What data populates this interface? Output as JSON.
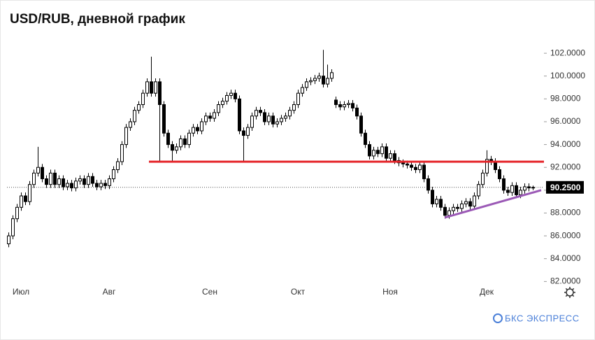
{
  "chart_data": {
    "type": "candlestick",
    "title": "USD/RUB, дневной график",
    "categories": [
      null,
      null,
      null,
      "Июл",
      null,
      null,
      null,
      null,
      null,
      null,
      null,
      null,
      null,
      null,
      null,
      null,
      null,
      null,
      null,
      null,
      null,
      null,
      null,
      null,
      "Авг",
      null,
      null,
      null,
      null,
      null,
      null,
      null,
      null,
      null,
      null,
      null,
      null,
      null,
      null,
      null,
      null,
      null,
      null,
      null,
      null,
      null,
      null,
      null,
      "Сен",
      null,
      null,
      null,
      null,
      null,
      null,
      null,
      null,
      null,
      null,
      null,
      null,
      null,
      null,
      null,
      null,
      null,
      null,
      null,
      null,
      "Окт",
      null,
      null,
      null,
      null,
      null,
      null,
      null,
      null,
      null,
      null,
      null,
      null,
      null,
      null,
      null,
      null,
      null,
      null,
      null,
      null,
      null,
      "Ноя",
      null,
      null,
      null,
      null,
      null,
      null,
      null,
      null,
      null,
      null,
      null,
      null,
      null,
      null,
      null,
      null,
      null,
      null,
      null,
      null,
      null,
      null,
      "Дек",
      null,
      null,
      null,
      null,
      null,
      null,
      null,
      null,
      null,
      null,
      null
    ],
    "series": [
      {
        "color": "#000000",
        "up_color": "#ffffff",
        "down_color": "#000000",
        "open": [
          85.3,
          86.0,
          87.5,
          88.5,
          89.5,
          89.0,
          90.5,
          91.5,
          92.0,
          91.0,
          90.5,
          91.5,
          90.5,
          91.0,
          90.3,
          90.6,
          90.2,
          90.8,
          91.0,
          90.5,
          91.2,
          90.6,
          90.3,
          90.6,
          90.4,
          91.0,
          91.8,
          92.5,
          94.0,
          95.5,
          96.0,
          97.0,
          97.5,
          98.5,
          99.5,
          98.5,
          99.5,
          97.5,
          95.0,
          94.0,
          93.5,
          93.8,
          94.5,
          94.0,
          95.0,
          95.5,
          95.2,
          96.0,
          96.5,
          96.3,
          96.8,
          97.5,
          97.8,
          98.3,
          98.5,
          98.0,
          95.2,
          94.8,
          95.5,
          96.5,
          97.0,
          96.8,
          96.0,
          96.5,
          95.8,
          96.0,
          96.3,
          96.5,
          97.0,
          97.5,
          98.5,
          99.0,
          99.5,
          99.6,
          99.8,
          100.0,
          99.3,
          99.8,
          97.9,
          97.5,
          97.3,
          97.5,
          97.6,
          97.2,
          96.5,
          95.0,
          94.0,
          93.0,
          93.5,
          93.2,
          93.8,
          92.8,
          93.2,
          92.6,
          92.4,
          92.3,
          92.2,
          92.0,
          91.8,
          92.2,
          91.0,
          90.0,
          88.8,
          89.2,
          88.5,
          87.8,
          88.2,
          88.5,
          88.4,
          88.8,
          89.0,
          88.6,
          89.5,
          90.5,
          91.5,
          92.7,
          92.5,
          91.8,
          91.0,
          90.0,
          89.8,
          90.4,
          89.6,
          90.0,
          90.3,
          90.2
        ],
        "high": [
          86.3,
          87.8,
          88.8,
          89.8,
          89.8,
          90.8,
          91.8,
          93.8,
          92.3,
          91.3,
          91.8,
          91.8,
          91.3,
          91.3,
          90.9,
          90.9,
          91.1,
          91.3,
          91.3,
          91.5,
          91.5,
          90.9,
          90.9,
          90.9,
          91.3,
          92.1,
          92.8,
          94.3,
          95.8,
          96.3,
          97.3,
          97.8,
          98.8,
          99.8,
          101.7,
          99.8,
          99.8,
          97.8,
          95.3,
          94.3,
          94.1,
          94.8,
          94.8,
          95.3,
          95.8,
          95.8,
          96.3,
          96.8,
          96.8,
          97.1,
          97.8,
          98.1,
          98.6,
          98.8,
          98.8,
          98.3,
          95.5,
          95.8,
          96.8,
          97.3,
          97.3,
          97.1,
          96.8,
          96.8,
          96.3,
          96.6,
          96.8,
          97.3,
          97.8,
          98.8,
          99.3,
          99.8,
          99.9,
          100.1,
          100.3,
          102.3,
          101.0,
          100.6,
          98.2,
          97.8,
          97.8,
          97.9,
          97.9,
          97.5,
          96.8,
          95.3,
          94.3,
          93.8,
          93.8,
          94.1,
          94.1,
          93.5,
          93.5,
          92.9,
          92.7,
          92.6,
          92.5,
          92.3,
          92.5,
          92.5,
          91.3,
          90.3,
          89.5,
          89.5,
          88.8,
          88.5,
          88.8,
          88.8,
          89.1,
          89.3,
          89.3,
          89.8,
          90.8,
          91.8,
          93.5,
          93.0,
          92.8,
          92.1,
          91.3,
          90.3,
          90.7,
          90.7,
          90.3,
          90.6,
          90.6,
          90.4
        ],
        "low": [
          85.0,
          85.7,
          87.2,
          88.2,
          88.7,
          88.7,
          90.2,
          91.2,
          90.7,
          90.2,
          90.2,
          90.2,
          90.2,
          90.0,
          90.0,
          89.9,
          89.9,
          90.5,
          90.2,
          90.2,
          90.3,
          90.0,
          90.0,
          90.1,
          90.1,
          90.7,
          91.5,
          92.2,
          93.7,
          95.2,
          95.7,
          96.7,
          97.2,
          98.2,
          98.2,
          98.2,
          92.5,
          94.7,
          93.7,
          92.5,
          93.2,
          93.5,
          93.7,
          93.7,
          94.7,
          94.9,
          94.9,
          95.7,
          96.0,
          96.0,
          96.5,
          97.2,
          97.5,
          98.0,
          97.7,
          94.9,
          92.5,
          94.5,
          95.2,
          96.2,
          96.5,
          95.7,
          95.7,
          95.5,
          95.5,
          95.7,
          96.0,
          96.2,
          96.7,
          97.2,
          98.2,
          98.7,
          99.2,
          99.3,
          99.5,
          99.0,
          99.0,
          99.5,
          97.2,
          97.0,
          97.0,
          97.2,
          96.9,
          96.2,
          94.7,
          93.7,
          92.7,
          92.7,
          92.9,
          92.9,
          92.5,
          92.5,
          92.3,
          92.1,
          92.0,
          91.9,
          91.7,
          91.5,
          91.5,
          90.7,
          89.7,
          88.5,
          88.5,
          88.2,
          87.5,
          87.5,
          87.9,
          88.1,
          88.1,
          88.5,
          88.3,
          88.3,
          89.2,
          90.2,
          91.2,
          92.2,
          91.5,
          90.7,
          89.7,
          89.5,
          89.5,
          89.3,
          89.3,
          89.7,
          89.9,
          90.0
        ],
        "close": [
          86.0,
          87.5,
          88.5,
          89.5,
          89.0,
          90.5,
          91.5,
          92.0,
          91.0,
          90.5,
          91.5,
          90.5,
          91.0,
          90.3,
          90.6,
          90.2,
          90.8,
          91.0,
          90.5,
          91.2,
          90.6,
          90.3,
          90.6,
          90.4,
          91.0,
          91.8,
          92.5,
          94.0,
          95.5,
          96.0,
          97.0,
          97.5,
          98.5,
          99.5,
          98.5,
          99.5,
          97.5,
          95.0,
          94.0,
          93.5,
          93.8,
          94.5,
          94.0,
          95.0,
          95.5,
          95.2,
          96.0,
          96.5,
          96.3,
          96.8,
          97.5,
          97.8,
          98.3,
          98.5,
          98.0,
          95.2,
          94.8,
          95.5,
          96.5,
          97.0,
          96.8,
          96.0,
          96.5,
          95.8,
          96.0,
          96.3,
          96.5,
          97.0,
          97.5,
          98.5,
          99.0,
          99.5,
          99.6,
          99.8,
          100.0,
          99.3,
          99.8,
          100.3,
          97.5,
          97.3,
          97.5,
          97.6,
          97.2,
          96.5,
          95.0,
          94.0,
          93.0,
          93.5,
          93.2,
          93.8,
          92.8,
          93.2,
          92.6,
          92.4,
          92.3,
          92.2,
          92.0,
          91.8,
          92.2,
          91.0,
          90.0,
          88.8,
          89.2,
          88.5,
          87.8,
          88.2,
          88.5,
          88.4,
          88.8,
          89.0,
          88.6,
          89.5,
          90.5,
          91.5,
          92.7,
          92.5,
          91.8,
          91.0,
          90.0,
          89.8,
          90.4,
          89.6,
          90.0,
          90.3,
          90.2,
          90.25
        ]
      }
    ],
    "ylim": [
      81.9,
      103.6
    ],
    "yticks": [
      {
        "value": 82,
        "label": "82.0000"
      },
      {
        "value": 84,
        "label": "84.0000"
      },
      {
        "value": 86,
        "label": "86.0000"
      },
      {
        "value": 88,
        "label": "88.0000"
      },
      {
        "value": 90,
        "label": "90.0000"
      },
      {
        "value": 92,
        "label": "92.0000"
      },
      {
        "value": 94,
        "label": "94.0000"
      },
      {
        "value": 96,
        "label": "96.0000"
      },
      {
        "value": 98,
        "label": "98.0000"
      },
      {
        "value": 100,
        "label": "100.0000"
      },
      {
        "value": 102,
        "label": "102.0000"
      }
    ],
    "last_price": {
      "value": 90.25,
      "label": "90.2500"
    },
    "lines": [
      {
        "color": "#e5252a",
        "start": 33.5,
        "level": 92.5
      },
      {
        "color": "#9b59b6",
        "points": [
          [
            104,
            87.6
          ],
          [
            127,
            90.0
          ]
        ]
      }
    ],
    "brand": "БКС ЭКСПРЕСС"
  }
}
